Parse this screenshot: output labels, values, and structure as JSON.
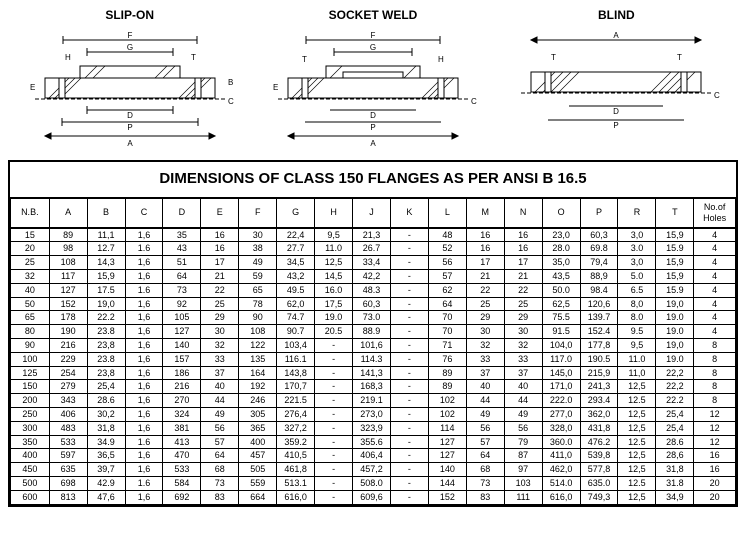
{
  "diagrams": {
    "slip_on": {
      "label": "SLIP-ON"
    },
    "socket_weld": {
      "label": "SOCKET WELD"
    },
    "blind": {
      "label": "BLIND"
    }
  },
  "table": {
    "title": "DIMENSIONS OF CLASS 150 FLANGES AS PER ANSI B 16.5",
    "columns": [
      "N.B.",
      "A",
      "B",
      "C",
      "D",
      "E",
      "F",
      "G",
      "H",
      "J",
      "K",
      "L",
      "M",
      "N",
      "O",
      "P",
      "R",
      "T",
      "No.of Holes"
    ],
    "rows": [
      [
        "15",
        "89",
        "11,1",
        "1,6",
        "35",
        "16",
        "30",
        "22,4",
        "9,5",
        "21,3",
        "-",
        "48",
        "16",
        "16",
        "23,0",
        "60,3",
        "3,0",
        "15,9",
        "4"
      ],
      [
        "20",
        "98",
        "12.7",
        "1.6",
        "43",
        "16",
        "38",
        "27.7",
        "11.0",
        "26.7",
        "-",
        "52",
        "16",
        "16",
        "28.0",
        "69.8",
        "3.0",
        "15.9",
        "4"
      ],
      [
        "25",
        "108",
        "14,3",
        "1,6",
        "51",
        "17",
        "49",
        "34,5",
        "12,5",
        "33,4",
        "-",
        "56",
        "17",
        "17",
        "35,0",
        "79,4",
        "3,0",
        "15,9",
        "4"
      ],
      [
        "32",
        "117",
        "15,9",
        "1,6",
        "64",
        "21",
        "59",
        "43,2",
        "14,5",
        "42,2",
        "-",
        "57",
        "21",
        "21",
        "43,5",
        "88,9",
        "5.0",
        "15,9",
        "4"
      ],
      [
        "40",
        "127",
        "17.5",
        "1.6",
        "73",
        "22",
        "65",
        "49.5",
        "16.0",
        "48.3",
        "-",
        "62",
        "22",
        "22",
        "50.0",
        "98.4",
        "6.5",
        "15.9",
        "4"
      ],
      [
        "50",
        "152",
        "19,0",
        "1,6",
        "92",
        "25",
        "78",
        "62,0",
        "17,5",
        "60,3",
        "-",
        "64",
        "25",
        "25",
        "62,5",
        "120,6",
        "8,0",
        "19,0",
        "4"
      ],
      [
        "65",
        "178",
        "22.2",
        "1,6",
        "105",
        "29",
        "90",
        "74.7",
        "19.0",
        "73.0",
        "-",
        "70",
        "29",
        "29",
        "75.5",
        "139.7",
        "8.0",
        "19.0",
        "4"
      ],
      [
        "80",
        "190",
        "23.8",
        "1,6",
        "127",
        "30",
        "108",
        "90.7",
        "20.5",
        "88.9",
        "-",
        "70",
        "30",
        "30",
        "91.5",
        "152.4",
        "9.5",
        "19.0",
        "4"
      ],
      [
        "90",
        "216",
        "23,8",
        "1,6",
        "140",
        "32",
        "122",
        "103,4",
        "-",
        "101,6",
        "-",
        "71",
        "32",
        "32",
        "104,0",
        "177,8",
        "9,5",
        "19,0",
        "8"
      ],
      [
        "100",
        "229",
        "23.8",
        "1,6",
        "157",
        "33",
        "135",
        "116.1",
        "-",
        "114.3",
        "-",
        "76",
        "33",
        "33",
        "117.0",
        "190.5",
        "11.0",
        "19.0",
        "8"
      ],
      [
        "125",
        "254",
        "23,8",
        "1,6",
        "186",
        "37",
        "164",
        "143,8",
        "-",
        "141,3",
        "-",
        "89",
        "37",
        "37",
        "145,0",
        "215,9",
        "11,0",
        "22,2",
        "8"
      ],
      [
        "150",
        "279",
        "25,4",
        "1,6",
        "216",
        "40",
        "192",
        "170,7",
        "-",
        "168,3",
        "-",
        "89",
        "40",
        "40",
        "171,0",
        "241,3",
        "12,5",
        "22,2",
        "8"
      ],
      [
        "200",
        "343",
        "28.6",
        "1,6",
        "270",
        "44",
        "246",
        "221.5",
        "-",
        "219.1",
        "-",
        "102",
        "44",
        "44",
        "222.0",
        "293.4",
        "12.5",
        "22.2",
        "8"
      ],
      [
        "250",
        "406",
        "30,2",
        "1,6",
        "324",
        "49",
        "305",
        "276,4",
        "-",
        "273,0",
        "-",
        "102",
        "49",
        "49",
        "277,0",
        "362,0",
        "12,5",
        "25,4",
        "12"
      ],
      [
        "300",
        "483",
        "31,8",
        "1,6",
        "381",
        "56",
        "365",
        "327,2",
        "-",
        "323,9",
        "-",
        "114",
        "56",
        "56",
        "328,0",
        "431,8",
        "12,5",
        "25,4",
        "12"
      ],
      [
        "350",
        "533",
        "34.9",
        "1.6",
        "413",
        "57",
        "400",
        "359.2",
        "-",
        "355.6",
        "-",
        "127",
        "57",
        "79",
        "360.0",
        "476.2",
        "12.5",
        "28.6",
        "12"
      ],
      [
        "400",
        "597",
        "36,5",
        "1,6",
        "470",
        "64",
        "457",
        "410,5",
        "-",
        "406,4",
        "-",
        "127",
        "64",
        "87",
        "411,0",
        "539,8",
        "12,5",
        "28,6",
        "16"
      ],
      [
        "450",
        "635",
        "39,7",
        "1,6",
        "533",
        "68",
        "505",
        "461,8",
        "-",
        "457,2",
        "-",
        "140",
        "68",
        "97",
        "462,0",
        "577,8",
        "12,5",
        "31,8",
        "16"
      ],
      [
        "500",
        "698",
        "42.9",
        "1.6",
        "584",
        "73",
        "559",
        "513.1",
        "-",
        "508.0",
        "-",
        "144",
        "73",
        "103",
        "514.0",
        "635.0",
        "12.5",
        "31.8",
        "20"
      ],
      [
        "600",
        "813",
        "47,6",
        "1,6",
        "692",
        "83",
        "664",
        "616,0",
        "-",
        "609,6",
        "-",
        "152",
        "83",
        "111",
        "616,0",
        "749,3",
        "12,5",
        "34,9",
        "20"
      ]
    ],
    "styling": {
      "border_color": "#000000",
      "header_fontsize": 9,
      "cell_fontsize": 9,
      "title_fontsize": 15,
      "background": "#ffffff"
    }
  }
}
